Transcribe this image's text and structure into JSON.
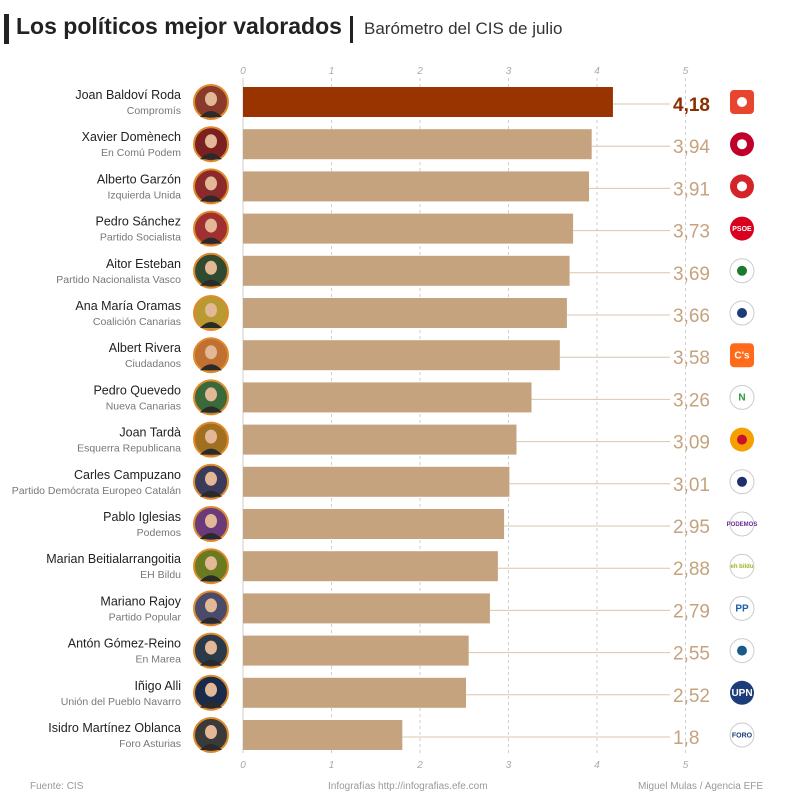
{
  "header": {
    "title": "Los políticos mejor valorados",
    "subtitle": "Barómetro del CIS de julio"
  },
  "footer": {
    "source": "Fuente: CIS",
    "credit": "Infografías http://infografias.efe.com",
    "author": "Miguel Mulas / Agencia EFE"
  },
  "colors": {
    "highlight_bar": "#993300",
    "bar": "#c4a37e",
    "value_text": "#c4a37e",
    "highlight_value_text": "#8b2e00"
  },
  "chart_data": {
    "type": "bar",
    "orientation": "horizontal",
    "xlim": [
      0,
      5
    ],
    "ticks": [
      "0",
      "1",
      "2",
      "3",
      "4",
      "5"
    ],
    "grid": true,
    "categories": [
      "Joan Baldoví Roda",
      "Xavier Domènech",
      "Alberto Garzón",
      "Pedro Sánchez",
      "Aitor Esteban",
      "Ana María Oramas",
      "Albert Rivera",
      "Pedro Quevedo",
      "Joan Tardà",
      "Carles Campuzano",
      "Pablo Iglesias",
      "Marian Beitialarrangoitia",
      "Mariano Rajoy",
      "Antón Gómez-Reino",
      "Iñigo Alli",
      "Isidro Martínez Oblanca"
    ],
    "parties": [
      "Compromís",
      "En Comú Podem",
      "Izquierda Unida",
      "Partido Socialista",
      "Partido Nacionalista Vasco",
      "Coalición Canarias",
      "Ciudadanos",
      "Nueva Canarias",
      "Esquerra Republicana",
      "Partido Demócrata Europeo Catalán",
      "Podemos",
      "EH Bildu",
      "Partido Popular",
      "En Marea",
      "Unión del Pueblo Navarro",
      "Foro Asturias"
    ],
    "values": [
      4.18,
      3.94,
      3.91,
      3.73,
      3.69,
      3.66,
      3.58,
      3.26,
      3.09,
      3.01,
      2.95,
      2.88,
      2.79,
      2.55,
      2.52,
      1.8
    ],
    "value_labels": [
      "4,18",
      "3,94",
      "3,91",
      "3,73",
      "3,69",
      "3,66",
      "3,58",
      "3,26",
      "3,09",
      "3,01",
      "2,95",
      "2,88",
      "2,79",
      "2,55",
      "2,52",
      "1,8"
    ],
    "highlight_index": 0
  },
  "avatars": [
    {
      "bg": "#8a3a2a"
    },
    {
      "bg": "#7a2020"
    },
    {
      "bg": "#8a2a2a"
    },
    {
      "bg": "#a03030"
    },
    {
      "bg": "#2f4a2f"
    },
    {
      "bg": "#b89a30"
    },
    {
      "bg": "#c07030"
    },
    {
      "bg": "#3a6a3a"
    },
    {
      "bg": "#a07020"
    },
    {
      "bg": "#3a3a5a"
    },
    {
      "bg": "#6a3a7a"
    },
    {
      "bg": "#6a7a20"
    },
    {
      "bg": "#4a4a6a"
    },
    {
      "bg": "#2a3a4a"
    },
    {
      "bg": "#1a2a4a"
    },
    {
      "bg": "#3a3a3a"
    }
  ],
  "logos": [
    {
      "bg": "#e8452e",
      "fg": "#ffffff",
      "text": "",
      "shape": "square"
    },
    {
      "bg": "#c0002a",
      "fg": "#ffffff",
      "text": "",
      "shape": "circle"
    },
    {
      "bg": "#d4242a",
      "fg": "#ffffff",
      "text": "",
      "shape": "circle"
    },
    {
      "bg": "#d8001e",
      "fg": "#ffffff",
      "text": "PSOE",
      "shape": "circle"
    },
    {
      "bg": "#ffffff",
      "fg": "#1b7a2e",
      "text": "",
      "shape": "circle"
    },
    {
      "bg": "#ffffff",
      "fg": "#1c3d7a",
      "text": "",
      "shape": "circle"
    },
    {
      "bg": "#ff6b1a",
      "fg": "#ffffff",
      "text": "C's",
      "shape": "square"
    },
    {
      "bg": "#ffffff",
      "fg": "#2a9a3a",
      "text": "N",
      "shape": "circle"
    },
    {
      "bg": "#f5a000",
      "fg": "#c8102e",
      "text": "",
      "shape": "circle"
    },
    {
      "bg": "#ffffff",
      "fg": "#1d2f6f",
      "text": "",
      "shape": "circle"
    },
    {
      "bg": "#ffffff",
      "fg": "#6b2c91",
      "text": "PODEMOS",
      "shape": "circle"
    },
    {
      "bg": "#ffffff",
      "fg": "#9ab51e",
      "text": "eh bildu",
      "shape": "circle"
    },
    {
      "bg": "#ffffff",
      "fg": "#1a5eb0",
      "text": "PP",
      "shape": "circle"
    },
    {
      "bg": "#ffffff",
      "fg": "#1a5a8a",
      "text": "",
      "shape": "circle"
    },
    {
      "bg": "#1c3d7a",
      "fg": "#ffffff",
      "text": "UPN",
      "shape": "circle"
    },
    {
      "bg": "#ffffff",
      "fg": "#1c3d7a",
      "text": "FORO",
      "shape": "circle"
    }
  ]
}
